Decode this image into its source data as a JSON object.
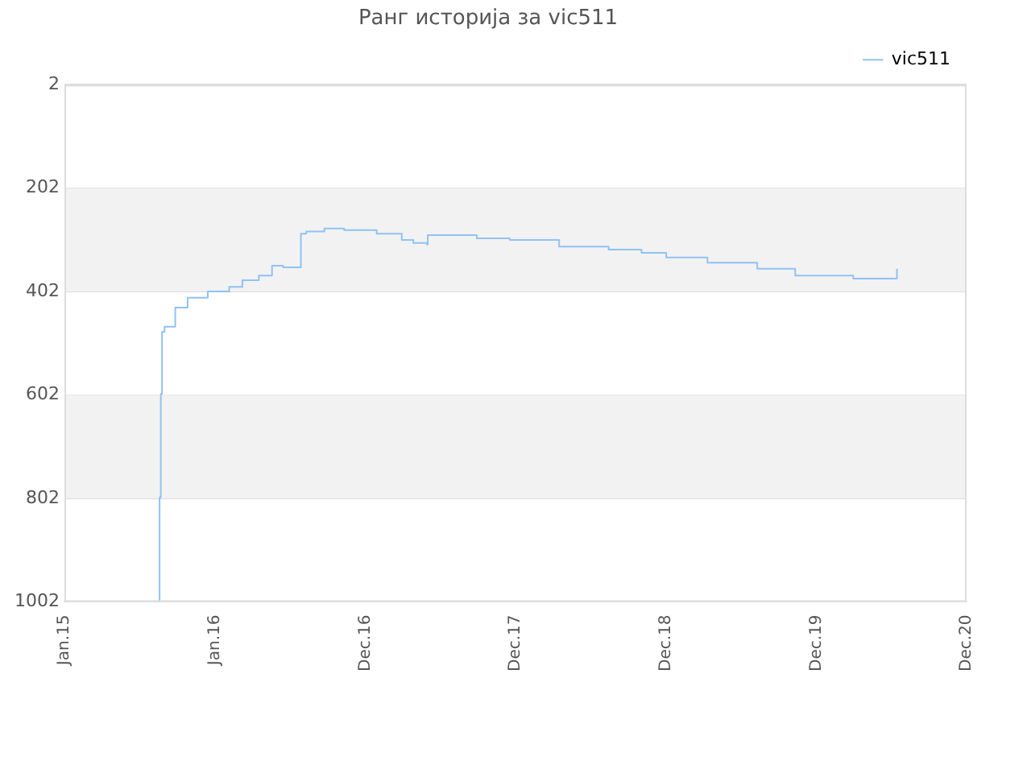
{
  "chart_data": {
    "type": "step",
    "title": "Ранг историја за vic511",
    "x": [
      "2015-08-18",
      "2015-08-20",
      "2015-08-23",
      "2015-08-26",
      "2015-09-01",
      "2015-09-27",
      "2015-10-27",
      "2015-12-15",
      "2016-02-05",
      "2016-03-08",
      "2016-04-17",
      "2016-05-19",
      "2016-06-15",
      "2016-07-25",
      "2016-07-28",
      "2016-08-10",
      "2016-09-23",
      "2016-11-10",
      "2017-01-28",
      "2017-03-30",
      "2017-04-27",
      "2017-05-30",
      "2017-06-01",
      "2017-07-10",
      "2017-09-28",
      "2017-12-17",
      "2018-04-16",
      "2018-08-14",
      "2018-11-02",
      "2019-01-01",
      "2019-04-11",
      "2019-08-10",
      "2019-11-10",
      "2020-03-18",
      "2020-03-30",
      "2020-07-13",
      "2020-07-14"
    ],
    "series": [
      {
        "name": "vic511",
        "color": "#90c2f5",
        "values": [
          1002,
          800,
          600,
          480,
          470,
          433,
          414,
          402,
          393,
          380,
          371,
          352,
          355,
          355,
          290,
          286,
          280,
          283,
          290,
          302,
          308,
          311,
          293,
          293,
          299,
          302,
          315,
          321,
          327,
          336,
          346,
          358,
          371,
          371,
          377,
          377,
          358
        ]
      }
    ],
    "xlim": [
      "2015-01-01",
      "2020-12-30"
    ],
    "xticks": [
      {
        "value": "2015-01-01",
        "label": "Jan.15"
      },
      {
        "value": "2016-01-01",
        "label": "Jan.16"
      },
      {
        "value": "2016-12-31",
        "label": "Dec.16"
      },
      {
        "value": "2017-12-31",
        "label": "Dec.17"
      },
      {
        "value": "2018-12-31",
        "label": "Dec.18"
      },
      {
        "value": "2019-12-31",
        "label": "Dec.19"
      },
      {
        "value": "2020-12-30",
        "label": "Dec.20"
      }
    ],
    "ylim": [
      1002,
      2
    ],
    "yticks": [
      2,
      202,
      402,
      602,
      802,
      1002
    ],
    "bands": [
      {
        "axis": "y",
        "from": 202,
        "to": 402,
        "color": "#f2f2f2"
      },
      {
        "axis": "y",
        "from": 602,
        "to": 802,
        "color": "#f2f2f2"
      }
    ],
    "grid": "y",
    "legend": "top right"
  }
}
